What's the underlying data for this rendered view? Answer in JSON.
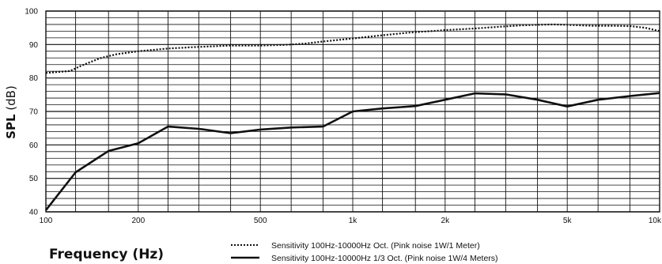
{
  "chart_data": {
    "type": "line",
    "xscale": "log",
    "xlim": [
      100,
      10000
    ],
    "ylim": [
      40,
      100
    ],
    "ylabel": "SPL (dB)",
    "ylabel_bold": "SPL",
    "ylabel_unit": "(dB)",
    "xlabel": "Frequency (Hz)",
    "yticks": [
      "40",
      "50",
      "60",
      "70",
      "80",
      "90",
      "100"
    ],
    "xticks": [
      {
        "value": 100,
        "label": "100"
      },
      {
        "value": 200,
        "label": "200"
      },
      {
        "value": 500,
        "label": "500"
      },
      {
        "value": 1000,
        "label": "1k"
      },
      {
        "value": 2000,
        "label": "2k"
      },
      {
        "value": 5000,
        "label": "5k"
      },
      {
        "value": 10000,
        "label": "10k"
      }
    ],
    "grid": true,
    "legend_position": "bottom-center",
    "series": [
      {
        "name": "Sensitivity 100Hz-10000Hz Oct. (Pink noise 1W/1 Meter)",
        "style": "dotted",
        "x": [
          100,
          110,
          120,
          130,
          150,
          170,
          200,
          250,
          300,
          400,
          500,
          600,
          700,
          800,
          1000,
          1200,
          1500,
          2000,
          2500,
          3000,
          3500,
          4000,
          4500,
          5000,
          6000,
          7000,
          8000,
          9000,
          10000
        ],
        "y": [
          81.5,
          81.8,
          82.1,
          83.6,
          85.9,
          87.1,
          88.0,
          88.8,
          89.2,
          89.7,
          89.7,
          89.9,
          90.3,
          90.9,
          91.8,
          92.6,
          93.5,
          94.3,
          94.8,
          95.3,
          95.7,
          95.9,
          96.0,
          95.9,
          95.6,
          95.6,
          95.5,
          95.0,
          94.0
        ]
      },
      {
        "name": "Sensitivity 100Hz-10000Hz 1/3 Oct. (Pink noise 1W/4 Meters)",
        "style": "solid",
        "x": [
          100,
          125,
          160,
          200,
          250,
          315,
          400,
          500,
          630,
          800,
          1000,
          1250,
          1600,
          2000,
          2500,
          3150,
          4000,
          5000,
          6300,
          8000,
          10000
        ],
        "y": [
          40.5,
          51.8,
          58.2,
          60.5,
          65.5,
          64.8,
          63.5,
          64.6,
          65.2,
          65.5,
          70.0,
          70.9,
          71.6,
          73.5,
          75.4,
          75.1,
          73.5,
          71.5,
          73.5,
          74.6,
          75.5
        ]
      }
    ]
  }
}
